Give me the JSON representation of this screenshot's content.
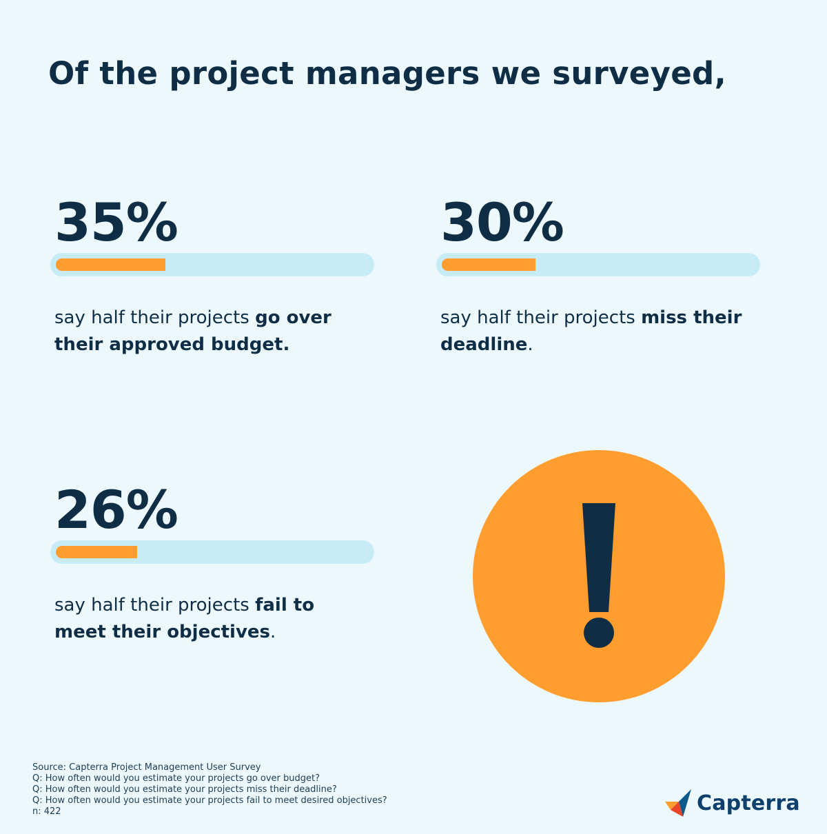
{
  "headline": "Of the project managers we surveyed,",
  "stats": [
    {
      "percent": "35%",
      "value": 0.35,
      "prefix": "say half their projects ",
      "bold": "go over their approved budget.",
      "suffix": ""
    },
    {
      "percent": "30%",
      "value": 0.3,
      "prefix": "say half their projects ",
      "bold": "miss their deadline",
      "suffix": "."
    },
    {
      "percent": "26%",
      "value": 0.26,
      "prefix": "say half their projects ",
      "bold": "fail to meet their objectives",
      "suffix": "."
    }
  ],
  "alert_icon": "exclamation-icon",
  "footer": {
    "source": "Source: Capterra Project Management User Survey",
    "q1": "Q: How often would you estimate your projects go over budget?",
    "q2": "Q: How often would you estimate your projects miss their deadline?",
    "q3": "Q: How often would you estimate your projects fail to meet desired objectives?",
    "n": "n: 422"
  },
  "brand": {
    "name": "Capterra",
    "icon": "capterra-logo-icon"
  },
  "colors": {
    "background": "#ecf8fc",
    "navy": "#0f2e45",
    "orange": "#ff9d2e",
    "track": "#c7ebf7"
  }
}
